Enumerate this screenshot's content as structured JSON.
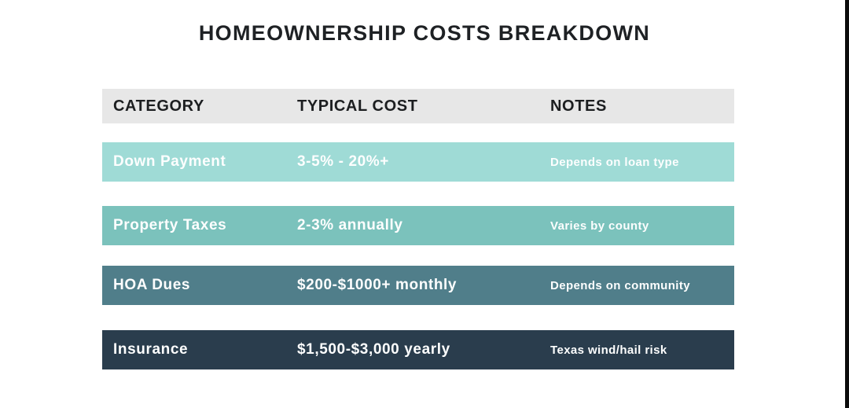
{
  "title": "HOMEOWNERSHIP COSTS BREAKDOWN",
  "chart_data": {
    "type": "table",
    "title": "HOMEOWNERSHIP COSTS BREAKDOWN",
    "columns": [
      "CATEGORY",
      "TYPICAL COST",
      "NOTES"
    ],
    "rows": [
      [
        "Down Payment",
        "3-5% - 20%+",
        "Depends on loan type"
      ],
      [
        "Property Taxes",
        "2-3% annually",
        "Varies by county"
      ],
      [
        "HOA Dues",
        "$200-$1000+ monthly",
        "Depends on community"
      ],
      [
        "Insurance",
        "$1,500-$3,000 yearly",
        "Texas wind/hail risk"
      ]
    ],
    "layout": {
      "header_position": "top",
      "grid": "none",
      "row_band_style": "separated horizontal bands"
    }
  },
  "colors": {
    "header_bg": "#e7e7e7",
    "header_text": "#1c1e20",
    "title_text": "#1e2124",
    "row_text": "#fdfefe",
    "edge_bar": "#0c0c0c",
    "row_bands": [
      "#9fdbd6",
      "#7bc2bc",
      "#507e8a",
      "#2a3d4d"
    ]
  }
}
